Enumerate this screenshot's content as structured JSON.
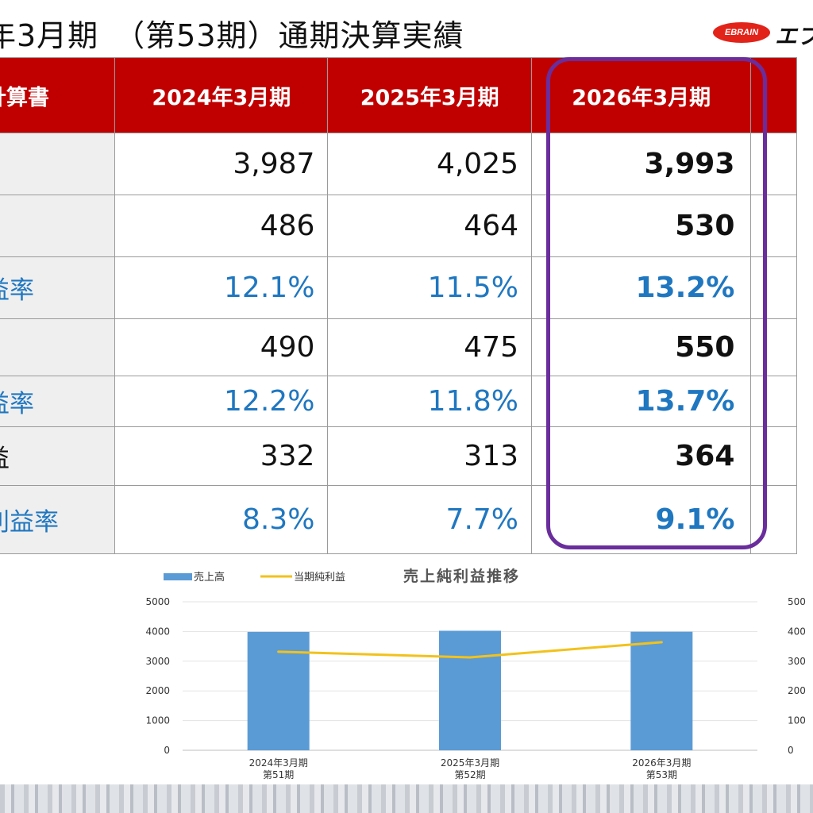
{
  "title": "年3月期　（第53期）通期決算実績",
  "logo": {
    "mark": "EBRAIN",
    "text": "エブ"
  },
  "colors": {
    "header_red": "#c00000",
    "highlight_border": "#6a2d9c",
    "pct_blue": "#1f77c0",
    "bar_blue": "#5b9bd5",
    "line_yellow": "#f2c21b"
  },
  "table": {
    "header": [
      "計算書",
      "2024年3月期",
      "2025年3月期",
      "2026年3月期"
    ],
    "rows": [
      {
        "label": "",
        "values": [
          "3,987",
          "4,025",
          "3,993"
        ],
        "kind": "num"
      },
      {
        "label": "",
        "values": [
          "486",
          "464",
          "530"
        ],
        "kind": "num"
      },
      {
        "label": "益率",
        "values": [
          "12.1%",
          "11.5%",
          "13.2%"
        ],
        "kind": "pct"
      },
      {
        "label": "",
        "values": [
          "490",
          "475",
          "550"
        ],
        "kind": "num"
      },
      {
        "label": "益率",
        "values": [
          "12.2%",
          "11.8%",
          "13.7%"
        ],
        "kind": "pct"
      },
      {
        "label": "益",
        "values": [
          "332",
          "313",
          "364"
        ],
        "kind": "num"
      },
      {
        "label": "利益率",
        "values": [
          "8.3%",
          "7.7%",
          "9.1%"
        ],
        "kind": "pct"
      }
    ]
  },
  "chart_data": {
    "type": "bar",
    "title": "売上純利益推移",
    "categories": [
      [
        "2024年3月期",
        "第51期"
      ],
      [
        "2025年3月期",
        "第52期"
      ],
      [
        "2026年3月期",
        "第53期"
      ]
    ],
    "series": [
      {
        "name": "売上高",
        "type": "bar",
        "axis": "left",
        "values": [
          3987,
          4025,
          3993
        ]
      },
      {
        "name": "当期純利益",
        "type": "line",
        "axis": "right",
        "values": [
          332,
          313,
          364
        ]
      }
    ],
    "ylim_left": [
      0,
      5000
    ],
    "yticks_left": [
      "0",
      "1000",
      "2000",
      "3000",
      "4000",
      "5000"
    ],
    "ylim_right": [
      0,
      500
    ],
    "yticks_right": [
      "0",
      "100",
      "200",
      "300",
      "400",
      "500"
    ],
    "legend_position": "top-left",
    "grid": true
  }
}
